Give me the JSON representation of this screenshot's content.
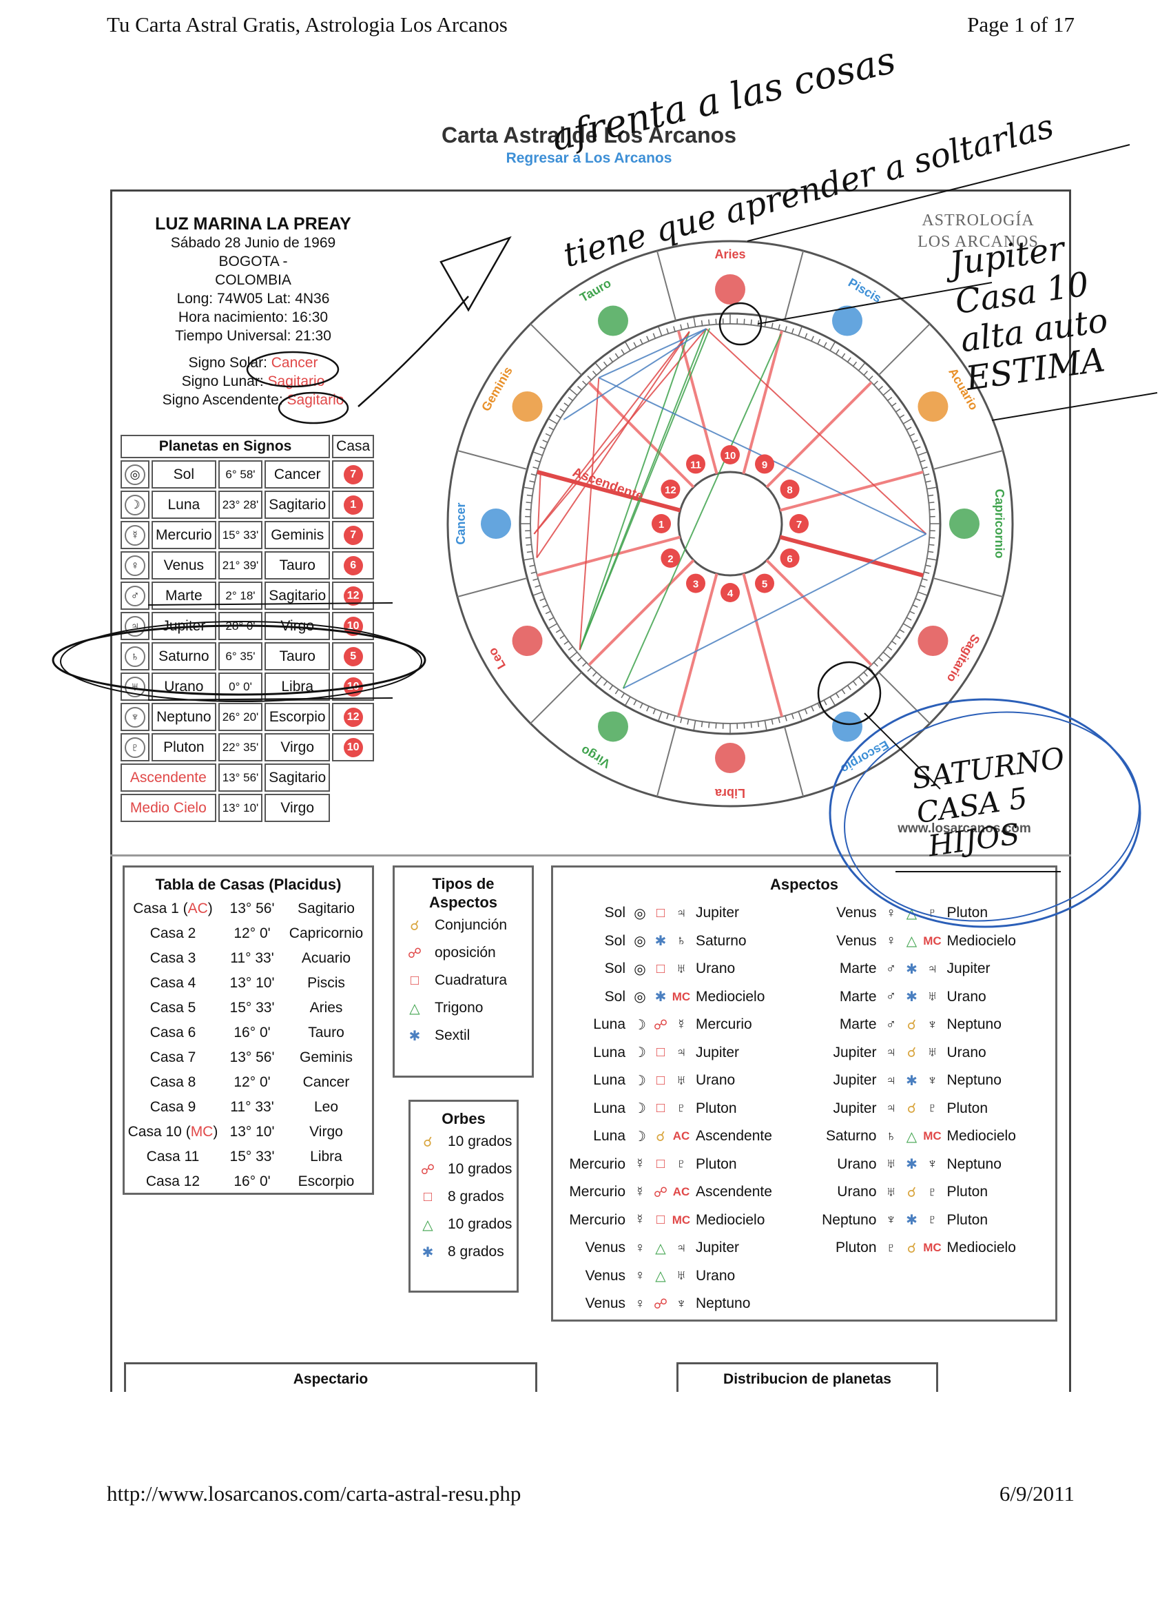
{
  "page": {
    "header_left": "Tu Carta Astral Gratis, Astrologia Los Arcanos",
    "header_right": "Page 1 of 17",
    "footer_left": "http://www.losarcanos.com/carta-astral-resu.php",
    "footer_right": "6/9/2011"
  },
  "title": {
    "main": "Carta Astral de Los Arcanos",
    "link": "Regresar a Los Arcanos"
  },
  "brand": {
    "line1": "ASTROLOGÍA",
    "line2": "LOS ARCANOS",
    "site": "www.losarcanos.com"
  },
  "person": {
    "name": "LUZ MARINA LA PREAY",
    "date": "Sábado 28 Junio de 1969",
    "city": "BOGOTA -",
    "country": "COLOMBIA",
    "coords": "Long: 74W05 Lat: 4N36",
    "birth_time": "Hora nacimiento: 16:30",
    "ut": "Tiempo Universal: 21:30",
    "solar_label": "Signo Solar:",
    "solar": "Cancer",
    "lunar_label": "Signo Lunar:",
    "lunar": "Sagitario",
    "asc_label": "Signo Ascendente:",
    "asc": "Sagitario"
  },
  "planets": {
    "header": "Planetas en Signos",
    "casa_header": "Casa",
    "rows": [
      {
        "icon": "◎",
        "name": "Sol",
        "deg": "6° 58'",
        "sign": "Cancer",
        "casa": "7"
      },
      {
        "icon": "☽",
        "name": "Luna",
        "deg": "23° 28'",
        "sign": "Sagitario",
        "casa": "1"
      },
      {
        "icon": "☿",
        "name": "Mercurio",
        "deg": "15° 33'",
        "sign": "Geminis",
        "casa": "7"
      },
      {
        "icon": "♀",
        "name": "Venus",
        "deg": "21° 39'",
        "sign": "Tauro",
        "casa": "6"
      },
      {
        "icon": "♂",
        "name": "Marte",
        "deg": "2° 18'",
        "sign": "Sagitario",
        "casa": "12"
      },
      {
        "icon": "♃",
        "name": "Jupiter",
        "deg": "28° 0'",
        "sign": "Virgo",
        "casa": "10"
      },
      {
        "icon": "♄",
        "name": "Saturno",
        "deg": "6° 35'",
        "sign": "Tauro",
        "casa": "5"
      },
      {
        "icon": "♅",
        "name": "Urano",
        "deg": "0° 0'",
        "sign": "Libra",
        "casa": "10"
      },
      {
        "icon": "♆",
        "name": "Neptuno",
        "deg": "26° 20'",
        "sign": "Escorpio",
        "casa": "12"
      },
      {
        "icon": "♇",
        "name": "Pluton",
        "deg": "22° 35'",
        "sign": "Virgo",
        "casa": "10"
      }
    ],
    "asc_row": {
      "name": "Ascendente",
      "deg": "13° 56'",
      "sign": "Sagitario"
    },
    "mc_row": {
      "name": "Medio Cielo",
      "deg": "13° 10'",
      "sign": "Virgo"
    }
  },
  "wheel": {
    "signs": [
      "Libra",
      "Virgo",
      "Leo",
      "Cancer",
      "Geminis",
      "Tauro",
      "Aries",
      "Piscis",
      "Acuario",
      "Capricornio",
      "Sagitario",
      "Escorpio"
    ],
    "asc_label": "Ascendente",
    "houses": [
      "1",
      "2",
      "3",
      "4",
      "5",
      "6",
      "7",
      "8",
      "9",
      "10",
      "11",
      "12"
    ]
  },
  "casas": {
    "header": "Tabla de Casas (Placidus)",
    "rows": [
      {
        "c": "Casa 1",
        "tag": "AC",
        "d": "13° 56'",
        "s": "Sagitario"
      },
      {
        "c": "Casa 2",
        "tag": "",
        "d": "12° 0'",
        "s": "Capricornio"
      },
      {
        "c": "Casa 3",
        "tag": "",
        "d": "11° 33'",
        "s": "Acuario"
      },
      {
        "c": "Casa 4",
        "tag": "",
        "d": "13° 10'",
        "s": "Piscis"
      },
      {
        "c": "Casa 5",
        "tag": "",
        "d": "15° 33'",
        "s": "Aries"
      },
      {
        "c": "Casa 6",
        "tag": "",
        "d": "16° 0'",
        "s": "Tauro"
      },
      {
        "c": "Casa 7",
        "tag": "",
        "d": "13° 56'",
        "s": "Geminis"
      },
      {
        "c": "Casa 8",
        "tag": "",
        "d": "12° 0'",
        "s": "Cancer"
      },
      {
        "c": "Casa 9",
        "tag": "",
        "d": "11° 33'",
        "s": "Leo"
      },
      {
        "c": "Casa 10",
        "tag": "MC",
        "d": "13° 10'",
        "s": "Virgo"
      },
      {
        "c": "Casa 11",
        "tag": "",
        "d": "15° 33'",
        "s": "Libra"
      },
      {
        "c": "Casa 12",
        "tag": "",
        "d": "16° 0'",
        "s": "Escorpio"
      }
    ]
  },
  "tipos": {
    "header1": "Tipos de",
    "header2": "Aspectos",
    "items": [
      {
        "sym": "☌",
        "label": "Conjunción",
        "color": "#d9a640"
      },
      {
        "sym": "☍",
        "label": "oposición",
        "color": "#e04848"
      },
      {
        "sym": "□",
        "label": "Cuadratura",
        "color": "#e04848"
      },
      {
        "sym": "△",
        "label": "Trigono",
        "color": "#3fa34d"
      },
      {
        "sym": "✱",
        "label": "Sextil",
        "color": "#4a7fc0"
      }
    ]
  },
  "orbes": {
    "header": "Orbes",
    "items": [
      {
        "sym": "☌",
        "label": "10 grados",
        "color": "#d9a640"
      },
      {
        "sym": "☍",
        "label": "10 grados",
        "color": "#e04848"
      },
      {
        "sym": "□",
        "label": "8 grados",
        "color": "#e04848"
      },
      {
        "sym": "△",
        "label": "10 grados",
        "color": "#3fa34d"
      },
      {
        "sym": "✱",
        "label": "8 grados",
        "color": "#4a7fc0"
      }
    ]
  },
  "aspectos": {
    "header": "Aspectos",
    "left": [
      {
        "a": "Sol",
        "ai": "◎",
        "t": "□",
        "tc": "#e04848",
        "bi": "♃",
        "b": "Jupiter"
      },
      {
        "a": "Sol",
        "ai": "◎",
        "t": "✱",
        "tc": "#4a7fc0",
        "bi": "♄",
        "b": "Saturno"
      },
      {
        "a": "Sol",
        "ai": "◎",
        "t": "□",
        "tc": "#e04848",
        "bi": "♅",
        "b": "Urano"
      },
      {
        "a": "Sol",
        "ai": "◎",
        "t": "✱",
        "tc": "#4a7fc0",
        "bi": "MC",
        "b": "Mediocielo"
      },
      {
        "a": "Luna",
        "ai": "☽",
        "t": "☍",
        "tc": "#e04848",
        "bi": "☿",
        "b": "Mercurio"
      },
      {
        "a": "Luna",
        "ai": "☽",
        "t": "□",
        "tc": "#e04848",
        "bi": "♃",
        "b": "Jupiter"
      },
      {
        "a": "Luna",
        "ai": "☽",
        "t": "□",
        "tc": "#e04848",
        "bi": "♅",
        "b": "Urano"
      },
      {
        "a": "Luna",
        "ai": "☽",
        "t": "□",
        "tc": "#e04848",
        "bi": "♇",
        "b": "Pluton"
      },
      {
        "a": "Luna",
        "ai": "☽",
        "t": "☌",
        "tc": "#d9a640",
        "bi": "AC",
        "b": "Ascendente"
      },
      {
        "a": "Mercurio",
        "ai": "☿",
        "t": "□",
        "tc": "#e04848",
        "bi": "♇",
        "b": "Pluton"
      },
      {
        "a": "Mercurio",
        "ai": "☿",
        "t": "☍",
        "tc": "#e04848",
        "bi": "AC",
        "b": "Ascendente"
      },
      {
        "a": "Mercurio",
        "ai": "☿",
        "t": "□",
        "tc": "#e04848",
        "bi": "MC",
        "b": "Mediocielo"
      },
      {
        "a": "Venus",
        "ai": "♀",
        "t": "△",
        "tc": "#3fa34d",
        "bi": "♃",
        "b": "Jupiter"
      },
      {
        "a": "Venus",
        "ai": "♀",
        "t": "△",
        "tc": "#3fa34d",
        "bi": "♅",
        "b": "Urano"
      },
      {
        "a": "Venus",
        "ai": "♀",
        "t": "☍",
        "tc": "#e04848",
        "bi": "♆",
        "b": "Neptuno"
      }
    ],
    "right": [
      {
        "a": "Venus",
        "ai": "♀",
        "t": "△",
        "tc": "#3fa34d",
        "bi": "♇",
        "b": "Pluton"
      },
      {
        "a": "Venus",
        "ai": "♀",
        "t": "△",
        "tc": "#3fa34d",
        "bi": "MC",
        "b": "Mediocielo"
      },
      {
        "a": "Marte",
        "ai": "♂",
        "t": "✱",
        "tc": "#4a7fc0",
        "bi": "♃",
        "b": "Jupiter"
      },
      {
        "a": "Marte",
        "ai": "♂",
        "t": "✱",
        "tc": "#4a7fc0",
        "bi": "♅",
        "b": "Urano"
      },
      {
        "a": "Marte",
        "ai": "♂",
        "t": "☌",
        "tc": "#d9a640",
        "bi": "♆",
        "b": "Neptuno"
      },
      {
        "a": "Jupiter",
        "ai": "♃",
        "t": "☌",
        "tc": "#d9a640",
        "bi": "♅",
        "b": "Urano"
      },
      {
        "a": "Jupiter",
        "ai": "♃",
        "t": "✱",
        "tc": "#4a7fc0",
        "bi": "♆",
        "b": "Neptuno"
      },
      {
        "a": "Jupiter",
        "ai": "♃",
        "t": "☌",
        "tc": "#d9a640",
        "bi": "♇",
        "b": "Pluton"
      },
      {
        "a": "Saturno",
        "ai": "♄",
        "t": "△",
        "tc": "#3fa34d",
        "bi": "MC",
        "b": "Mediocielo"
      },
      {
        "a": "Urano",
        "ai": "♅",
        "t": "✱",
        "tc": "#4a7fc0",
        "bi": "♆",
        "b": "Neptuno"
      },
      {
        "a": "Urano",
        "ai": "♅",
        "t": "☌",
        "tc": "#d9a640",
        "bi": "♇",
        "b": "Pluton"
      },
      {
        "a": "Neptuno",
        "ai": "♆",
        "t": "✱",
        "tc": "#4a7fc0",
        "bi": "♇",
        "b": "Pluton"
      },
      {
        "a": "Pluton",
        "ai": "♇",
        "t": "☌",
        "tc": "#d9a640",
        "bi": "MC",
        "b": "Mediocielo"
      }
    ]
  },
  "bottom": {
    "aspectario": "Aspectario",
    "distribucion": "Distribucion de planetas"
  },
  "handwriting": {
    "top1": "afrenta a las cosas",
    "top2": "tiene que aprender a soltarlas",
    "jupiter1": "Jupiter",
    "jupiter2": "Casa 10",
    "jupiter3": "alta auto",
    "jupiter4": "ESTIMA",
    "saturno1": "SATURNO",
    "saturno2": "CASA 5",
    "saturno3": "HIJOS"
  }
}
